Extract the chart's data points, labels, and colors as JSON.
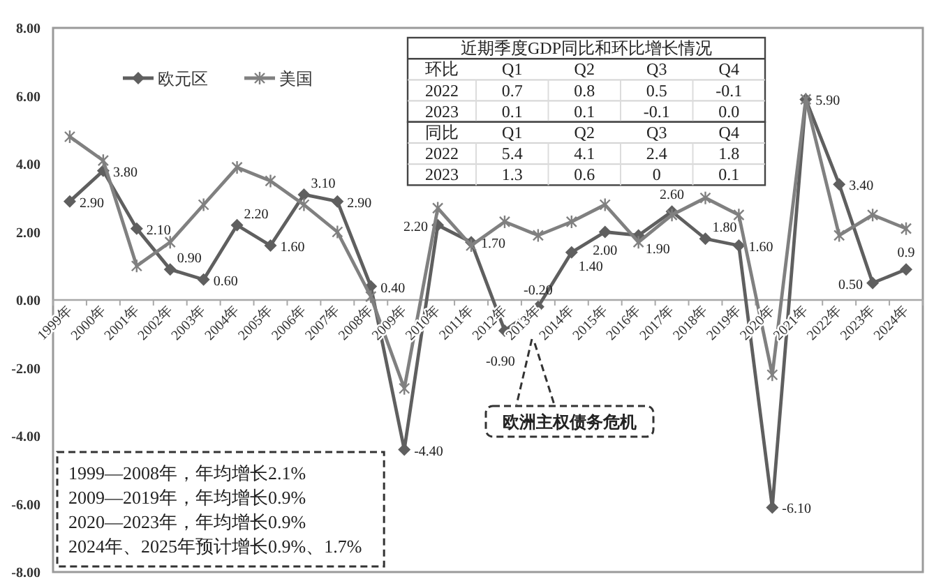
{
  "chart_data": [
    {
      "type": "line",
      "categories": [
        "1999年",
        "2000年",
        "2001年",
        "2002年",
        "2003年",
        "2004年",
        "2005年",
        "2006年",
        "2007年",
        "2008年",
        "2009年",
        "2010年",
        "2011年",
        "2012年",
        "2013年",
        "2014年",
        "2015年",
        "2016年",
        "2017年",
        "2018年",
        "2019年",
        "2020年",
        "2021年",
        "2022年",
        "2023年",
        "2024年"
      ],
      "series": [
        {
          "name": "欧元区",
          "color": "#5f5f5f",
          "marker": "diamond",
          "values": [
            2.9,
            3.8,
            2.1,
            0.9,
            0.6,
            2.2,
            1.6,
            3.1,
            2.9,
            0.4,
            -4.4,
            2.2,
            1.7,
            -0.9,
            -0.2,
            1.4,
            2.0,
            1.9,
            2.6,
            1.8,
            1.6,
            -6.1,
            5.9,
            3.4,
            0.5,
            0.9
          ],
          "value_labels": [
            "2.90",
            "3.80",
            "2.10",
            "0.90",
            "0.60",
            "2.20",
            "1.60",
            "3.10",
            "2.90",
            "0.40",
            "-4.40",
            "2.20",
            "1.70",
            "-0.90",
            "-0.20",
            "1.40",
            "2.00",
            "1.90",
            "2.60",
            "1.80",
            "1.60",
            "-6.10",
            "5.90",
            "3.40",
            "0.50",
            "0.9"
          ]
        },
        {
          "name": "美国",
          "color": "#808080",
          "marker": "cross",
          "values": [
            4.8,
            4.1,
            1.0,
            1.7,
            2.8,
            3.9,
            3.5,
            2.8,
            2.0,
            0.1,
            -2.6,
            2.7,
            1.6,
            2.3,
            1.9,
            2.3,
            2.8,
            1.7,
            2.5,
            3.0,
            2.5,
            -2.2,
            5.9,
            1.9,
            2.5,
            2.1
          ]
        }
      ],
      "ylim": [
        -8,
        8
      ],
      "yticks": [
        {
          "value": -8,
          "label": "-8.00"
        },
        {
          "value": -6,
          "label": "-6.00"
        },
        {
          "value": -4,
          "label": "-4.00"
        },
        {
          "value": -2,
          "label": "-2.00"
        },
        {
          "value": 0,
          "label": "0.00"
        },
        {
          "value": 2,
          "label": "2.00"
        },
        {
          "value": 4,
          "label": "4.00"
        },
        {
          "value": 6,
          "label": "6.00"
        },
        {
          "value": 8,
          "label": "8.00"
        }
      ],
      "legend": "top left",
      "line_style": "solid",
      "annotations": [
        "欧洲主权债务危机",
        "1999—2008年，年均增长2.1%",
        "2009—2019年，年均增长0.9%",
        "2020—2023年，年均增长0.9%",
        "2024年、2025年预计增长0.9%、1.7%"
      ]
    },
    {
      "type": "other",
      "title": "近期季度GDP同比和环比增长情况",
      "ylabel": "环比",
      "categories": [
        "Q1",
        "Q2",
        "Q3",
        "Q4"
      ],
      "y_categories": [
        "2022",
        "2023"
      ],
      "cell_labels": [
        [
          "0.7",
          "0.8",
          "0.5",
          "-0.1"
        ],
        [
          "0.1",
          "0.1",
          "-0.1",
          "0.0"
        ]
      ]
    },
    {
      "type": "other",
      "ylabel": "同比",
      "categories": [
        "Q1",
        "Q2",
        "Q3",
        "Q4"
      ],
      "y_categories": [
        "2022",
        "2023"
      ],
      "cell_labels": [
        [
          "5.4",
          "4.1",
          "2.4",
          "1.8"
        ],
        [
          "1.3",
          "0.6",
          "0",
          "0.1"
        ]
      ]
    }
  ]
}
